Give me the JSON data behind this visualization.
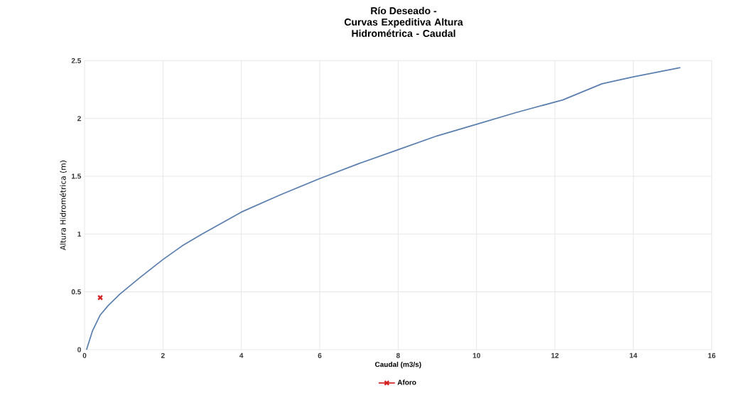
{
  "chart_data": {
    "type": "line",
    "title": "Río Deseado  -",
    "subtitle": "Curvas Expeditiva Altura Hidrométrica - Caudal",
    "xlabel": "Caudal (m3/s)",
    "ylabel": "Altura Hidrométrica (m)",
    "xlim": [
      0,
      16
    ],
    "xticks": [
      0,
      2,
      4,
      6,
      8,
      10,
      12,
      14,
      16
    ],
    "ylim": [
      0,
      2.5
    ],
    "yticks": [
      0,
      0.5,
      1,
      1.5,
      2,
      2.5
    ],
    "grid": true,
    "legend": "bottom",
    "series": [
      {
        "color": "#5b7fae",
        "marker": "none",
        "x": [
          0.05,
          0.2,
          0.4,
          0.6,
          0.9,
          1.4,
          2,
          2.5,
          3,
          4,
          5,
          6,
          7,
          8,
          9,
          10,
          11,
          12.2,
          13.2,
          14,
          15.2
        ],
        "values": [
          0,
          0.16,
          0.3,
          0.38,
          0.48,
          0.62,
          0.78,
          0.9,
          1.0,
          1.19,
          1.34,
          1.48,
          1.61,
          1.73,
          1.85,
          1.95,
          2.05,
          2.16,
          2.3,
          2.36,
          2.44
        ]
      },
      {
        "name": "Aforo",
        "color": "#d42020",
        "marker": "cross",
        "x": [
          0.4
        ],
        "values": [
          0.45
        ]
      }
    ]
  }
}
